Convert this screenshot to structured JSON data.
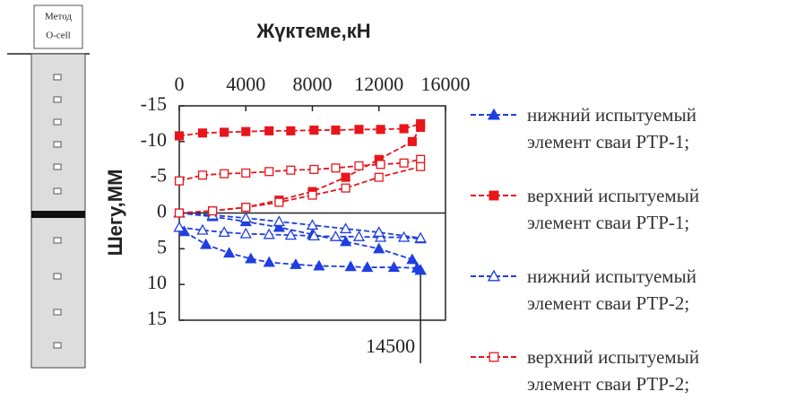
{
  "diagram": {
    "label_lines": [
      "Метод",
      "O-cell"
    ]
  },
  "chart_data": {
    "type": "line",
    "x_label": "Жүктеме,кН",
    "y_label": "Шегу,ММ",
    "xlim": [
      0,
      16000
    ],
    "xticks": [
      0,
      4000,
      8000,
      12000,
      16000
    ],
    "ylim": [
      -15,
      15
    ],
    "yticks": [
      -15,
      -10,
      -5,
      0,
      5,
      10,
      15
    ],
    "y_inverted": true,
    "marker_x": 14500,
    "series": [
      {
        "name": "нижний испытуемый элемент сваи РТР-1;",
        "color": "#1f3fe0",
        "marker": "triangle",
        "filled": true,
        "x": [
          300,
          1600,
          3000,
          4300,
          5400,
          7000,
          8400,
          10300,
          11300,
          12900,
          14300,
          14500,
          null,
          0,
          2000,
          4000,
          6000,
          8000,
          10000,
          12000,
          14000,
          14500
        ],
        "values": [
          2.6,
          4.4,
          5.6,
          6.4,
          6.9,
          7.2,
          7.4,
          7.5,
          7.6,
          7.6,
          7.7,
          8,
          null,
          0,
          0.5,
          1.2,
          2,
          3,
          4,
          5,
          6.5,
          8
        ]
      },
      {
        "name": "верхний испытуемый элемент сваи РТР-1;",
        "color": "#e8151b",
        "marker": "square",
        "filled": true,
        "x": [
          0,
          1400,
          2700,
          4000,
          5400,
          6700,
          8100,
          9400,
          10800,
          12100,
          13500,
          14500,
          null,
          0,
          2000,
          4000,
          6000,
          8000,
          10000,
          12000,
          14000,
          14500
        ],
        "values": [
          -10.8,
          -11.2,
          -11.3,
          -11.4,
          -11.5,
          -11.5,
          -11.6,
          -11.6,
          -11.7,
          -11.7,
          -11.8,
          -12.5,
          null,
          0,
          -0.3,
          -0.8,
          -1.8,
          -3,
          -5,
          -7.5,
          -10,
          -12
        ]
      },
      {
        "name": "нижний испытуемый элемент сваи РТР-2;",
        "color": "#1f3fe0",
        "marker": "triangle",
        "filled": false,
        "x": [
          0,
          1400,
          2700,
          4000,
          5400,
          6700,
          8100,
          9400,
          10800,
          12100,
          13500,
          14500,
          null,
          0,
          2000,
          4000,
          6000,
          8000,
          10000,
          12000,
          14500
        ],
        "values": [
          2,
          2.4,
          2.7,
          2.9,
          3,
          3.1,
          3.2,
          3.3,
          3.3,
          3.4,
          3.4,
          3.6,
          null,
          0,
          0.3,
          0.7,
          1.2,
          1.7,
          2.2,
          2.7,
          3.5
        ]
      },
      {
        "name": "верхний испытуемый элемент сваи РТР-2;",
        "color": "#e8151b",
        "marker": "square",
        "filled": false,
        "x": [
          0,
          1400,
          2700,
          4000,
          5400,
          6700,
          8100,
          9400,
          10800,
          12100,
          13500,
          14500,
          null,
          0,
          2000,
          4000,
          6000,
          8000,
          10000,
          12000,
          14500
        ],
        "values": [
          -4.5,
          -5.3,
          -5.5,
          -5.6,
          -5.8,
          -6,
          -6.1,
          -6.3,
          -6.6,
          -6.8,
          -7,
          -7.5,
          null,
          0,
          -0.3,
          -0.8,
          -1.5,
          -2.5,
          -3.5,
          -5,
          -6.5
        ]
      }
    ]
  }
}
